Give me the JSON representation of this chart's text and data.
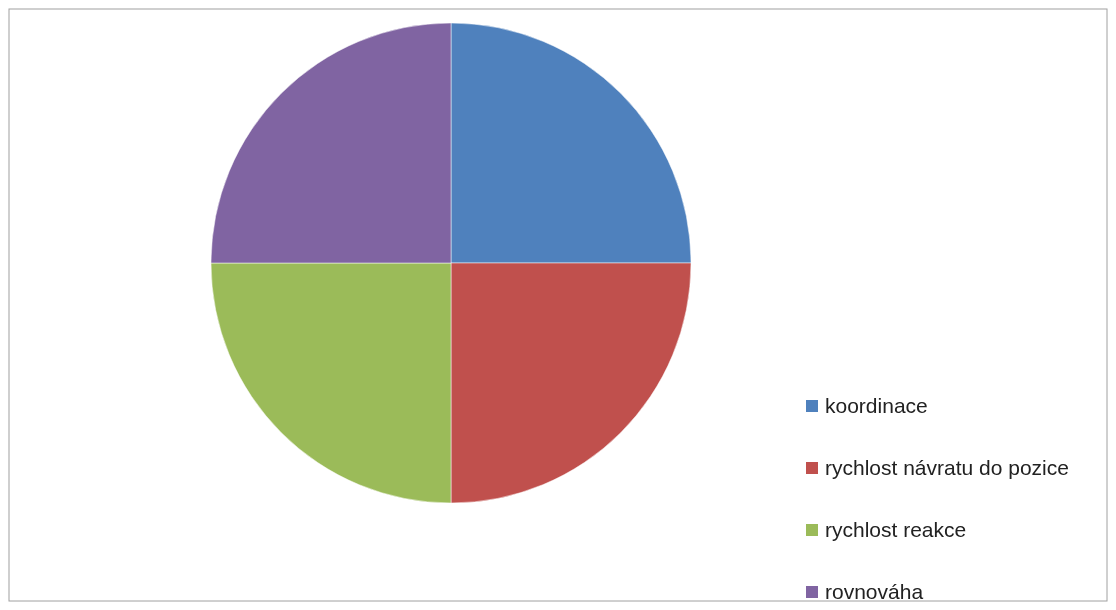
{
  "chart_data": {
    "type": "pie",
    "categories": [
      "koordinace",
      "rychlost návratu do pozice",
      "rychlost reakce",
      "rovnováha"
    ],
    "values": [
      25,
      25,
      25,
      25
    ],
    "colors": [
      "#4f81bd",
      "#c0504d",
      "#9bbb59",
      "#8064a2"
    ],
    "legend": "right"
  }
}
